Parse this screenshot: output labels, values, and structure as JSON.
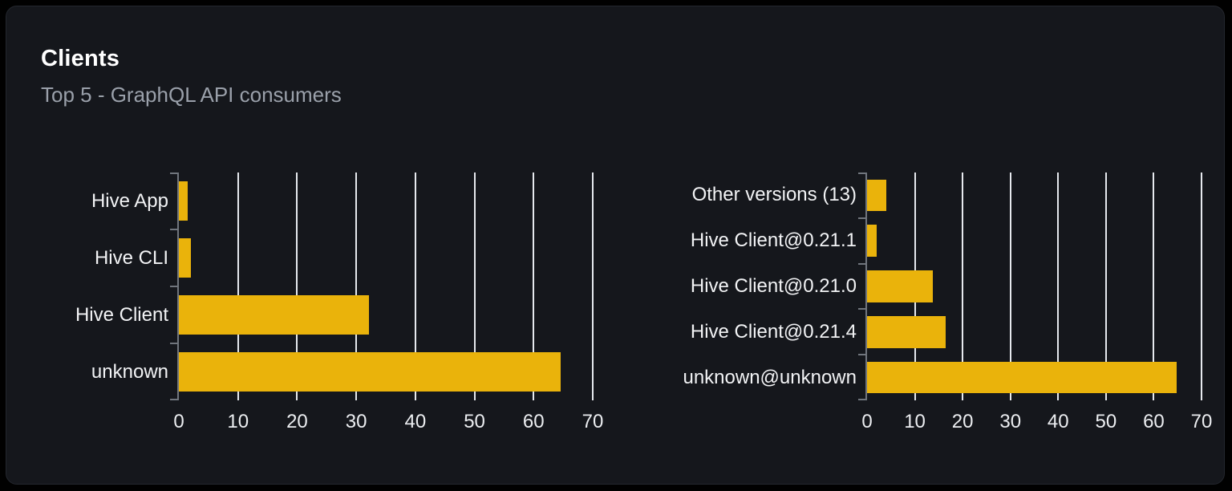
{
  "card": {
    "title": "Clients",
    "subtitle": "Top 5 - GraphQL API consumers"
  },
  "colors": {
    "page_bg": "#010101",
    "card_bg": "#15171c",
    "card_border": "#24272e",
    "title": "#ffffff",
    "subtitle": "#9aa0aa",
    "bar": "#eab30b",
    "gridline": "#e6e9ee",
    "axis": "#70757d",
    "tick_label": "#eceef1",
    "category_label": "#f2f3f5"
  },
  "chart_data": [
    {
      "type": "bar",
      "orientation": "horizontal",
      "title": "",
      "categories": [
        "Hive App",
        "Hive CLI",
        "Hive Client",
        "unknown"
      ],
      "values": [
        1.5,
        2.1,
        32.1,
        64.6
      ],
      "xlim": [
        0,
        70
      ],
      "xticks": [
        0,
        10,
        20,
        30,
        40,
        50,
        60,
        70
      ],
      "grid": true,
      "legend": "none"
    },
    {
      "type": "bar",
      "orientation": "horizontal",
      "title": "",
      "categories": [
        "Other versions (13)",
        "Hive Client@0.21.1",
        "Hive Client@0.21.0",
        "Hive Client@0.21.4",
        "unknown@unknown"
      ],
      "values": [
        4.0,
        2.0,
        13.8,
        16.5,
        64.8
      ],
      "xlim": [
        0,
        70
      ],
      "xticks": [
        0,
        10,
        20,
        30,
        40,
        50,
        60,
        70
      ],
      "grid": true,
      "legend": "none"
    }
  ]
}
